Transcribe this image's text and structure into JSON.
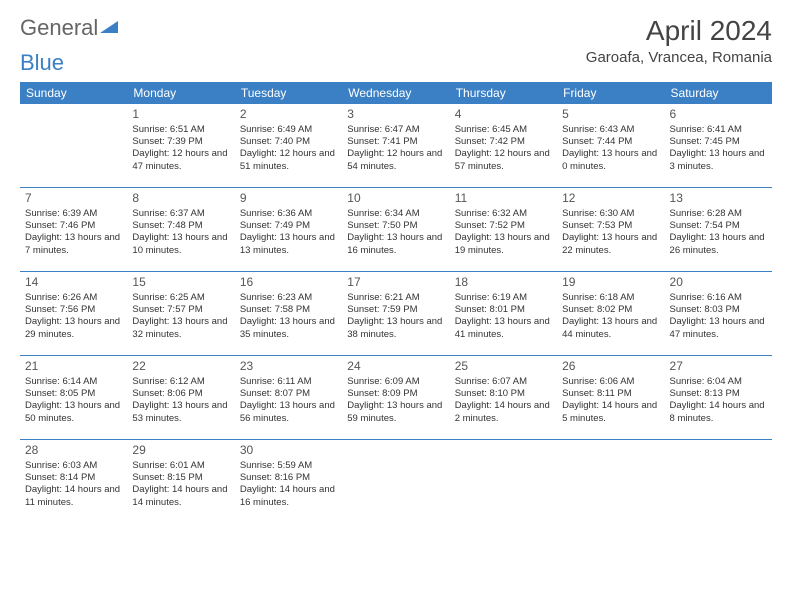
{
  "logo": {
    "general": "General",
    "blue": "Blue"
  },
  "title": "April 2024",
  "location": "Garoafa, Vrancea, Romania",
  "colors": {
    "header_bg": "#3b7fc4",
    "header_text": "#ffffff",
    "border": "#3b7fc4",
    "text": "#333333"
  },
  "day_headers": [
    "Sunday",
    "Monday",
    "Tuesday",
    "Wednesday",
    "Thursday",
    "Friday",
    "Saturday"
  ],
  "weeks": [
    [
      null,
      {
        "n": "1",
        "sr": "Sunrise: 6:51 AM",
        "ss": "Sunset: 7:39 PM",
        "dl": "Daylight: 12 hours and 47 minutes."
      },
      {
        "n": "2",
        "sr": "Sunrise: 6:49 AM",
        "ss": "Sunset: 7:40 PM",
        "dl": "Daylight: 12 hours and 51 minutes."
      },
      {
        "n": "3",
        "sr": "Sunrise: 6:47 AM",
        "ss": "Sunset: 7:41 PM",
        "dl": "Daylight: 12 hours and 54 minutes."
      },
      {
        "n": "4",
        "sr": "Sunrise: 6:45 AM",
        "ss": "Sunset: 7:42 PM",
        "dl": "Daylight: 12 hours and 57 minutes."
      },
      {
        "n": "5",
        "sr": "Sunrise: 6:43 AM",
        "ss": "Sunset: 7:44 PM",
        "dl": "Daylight: 13 hours and 0 minutes."
      },
      {
        "n": "6",
        "sr": "Sunrise: 6:41 AM",
        "ss": "Sunset: 7:45 PM",
        "dl": "Daylight: 13 hours and 3 minutes."
      }
    ],
    [
      {
        "n": "7",
        "sr": "Sunrise: 6:39 AM",
        "ss": "Sunset: 7:46 PM",
        "dl": "Daylight: 13 hours and 7 minutes."
      },
      {
        "n": "8",
        "sr": "Sunrise: 6:37 AM",
        "ss": "Sunset: 7:48 PM",
        "dl": "Daylight: 13 hours and 10 minutes."
      },
      {
        "n": "9",
        "sr": "Sunrise: 6:36 AM",
        "ss": "Sunset: 7:49 PM",
        "dl": "Daylight: 13 hours and 13 minutes."
      },
      {
        "n": "10",
        "sr": "Sunrise: 6:34 AM",
        "ss": "Sunset: 7:50 PM",
        "dl": "Daylight: 13 hours and 16 minutes."
      },
      {
        "n": "11",
        "sr": "Sunrise: 6:32 AM",
        "ss": "Sunset: 7:52 PM",
        "dl": "Daylight: 13 hours and 19 minutes."
      },
      {
        "n": "12",
        "sr": "Sunrise: 6:30 AM",
        "ss": "Sunset: 7:53 PM",
        "dl": "Daylight: 13 hours and 22 minutes."
      },
      {
        "n": "13",
        "sr": "Sunrise: 6:28 AM",
        "ss": "Sunset: 7:54 PM",
        "dl": "Daylight: 13 hours and 26 minutes."
      }
    ],
    [
      {
        "n": "14",
        "sr": "Sunrise: 6:26 AM",
        "ss": "Sunset: 7:56 PM",
        "dl": "Daylight: 13 hours and 29 minutes."
      },
      {
        "n": "15",
        "sr": "Sunrise: 6:25 AM",
        "ss": "Sunset: 7:57 PM",
        "dl": "Daylight: 13 hours and 32 minutes."
      },
      {
        "n": "16",
        "sr": "Sunrise: 6:23 AM",
        "ss": "Sunset: 7:58 PM",
        "dl": "Daylight: 13 hours and 35 minutes."
      },
      {
        "n": "17",
        "sr": "Sunrise: 6:21 AM",
        "ss": "Sunset: 7:59 PM",
        "dl": "Daylight: 13 hours and 38 minutes."
      },
      {
        "n": "18",
        "sr": "Sunrise: 6:19 AM",
        "ss": "Sunset: 8:01 PM",
        "dl": "Daylight: 13 hours and 41 minutes."
      },
      {
        "n": "19",
        "sr": "Sunrise: 6:18 AM",
        "ss": "Sunset: 8:02 PM",
        "dl": "Daylight: 13 hours and 44 minutes."
      },
      {
        "n": "20",
        "sr": "Sunrise: 6:16 AM",
        "ss": "Sunset: 8:03 PM",
        "dl": "Daylight: 13 hours and 47 minutes."
      }
    ],
    [
      {
        "n": "21",
        "sr": "Sunrise: 6:14 AM",
        "ss": "Sunset: 8:05 PM",
        "dl": "Daylight: 13 hours and 50 minutes."
      },
      {
        "n": "22",
        "sr": "Sunrise: 6:12 AM",
        "ss": "Sunset: 8:06 PM",
        "dl": "Daylight: 13 hours and 53 minutes."
      },
      {
        "n": "23",
        "sr": "Sunrise: 6:11 AM",
        "ss": "Sunset: 8:07 PM",
        "dl": "Daylight: 13 hours and 56 minutes."
      },
      {
        "n": "24",
        "sr": "Sunrise: 6:09 AM",
        "ss": "Sunset: 8:09 PM",
        "dl": "Daylight: 13 hours and 59 minutes."
      },
      {
        "n": "25",
        "sr": "Sunrise: 6:07 AM",
        "ss": "Sunset: 8:10 PM",
        "dl": "Daylight: 14 hours and 2 minutes."
      },
      {
        "n": "26",
        "sr": "Sunrise: 6:06 AM",
        "ss": "Sunset: 8:11 PM",
        "dl": "Daylight: 14 hours and 5 minutes."
      },
      {
        "n": "27",
        "sr": "Sunrise: 6:04 AM",
        "ss": "Sunset: 8:13 PM",
        "dl": "Daylight: 14 hours and 8 minutes."
      }
    ],
    [
      {
        "n": "28",
        "sr": "Sunrise: 6:03 AM",
        "ss": "Sunset: 8:14 PM",
        "dl": "Daylight: 14 hours and 11 minutes."
      },
      {
        "n": "29",
        "sr": "Sunrise: 6:01 AM",
        "ss": "Sunset: 8:15 PM",
        "dl": "Daylight: 14 hours and 14 minutes."
      },
      {
        "n": "30",
        "sr": "Sunrise: 5:59 AM",
        "ss": "Sunset: 8:16 PM",
        "dl": "Daylight: 14 hours and 16 minutes."
      },
      null,
      null,
      null,
      null
    ]
  ]
}
